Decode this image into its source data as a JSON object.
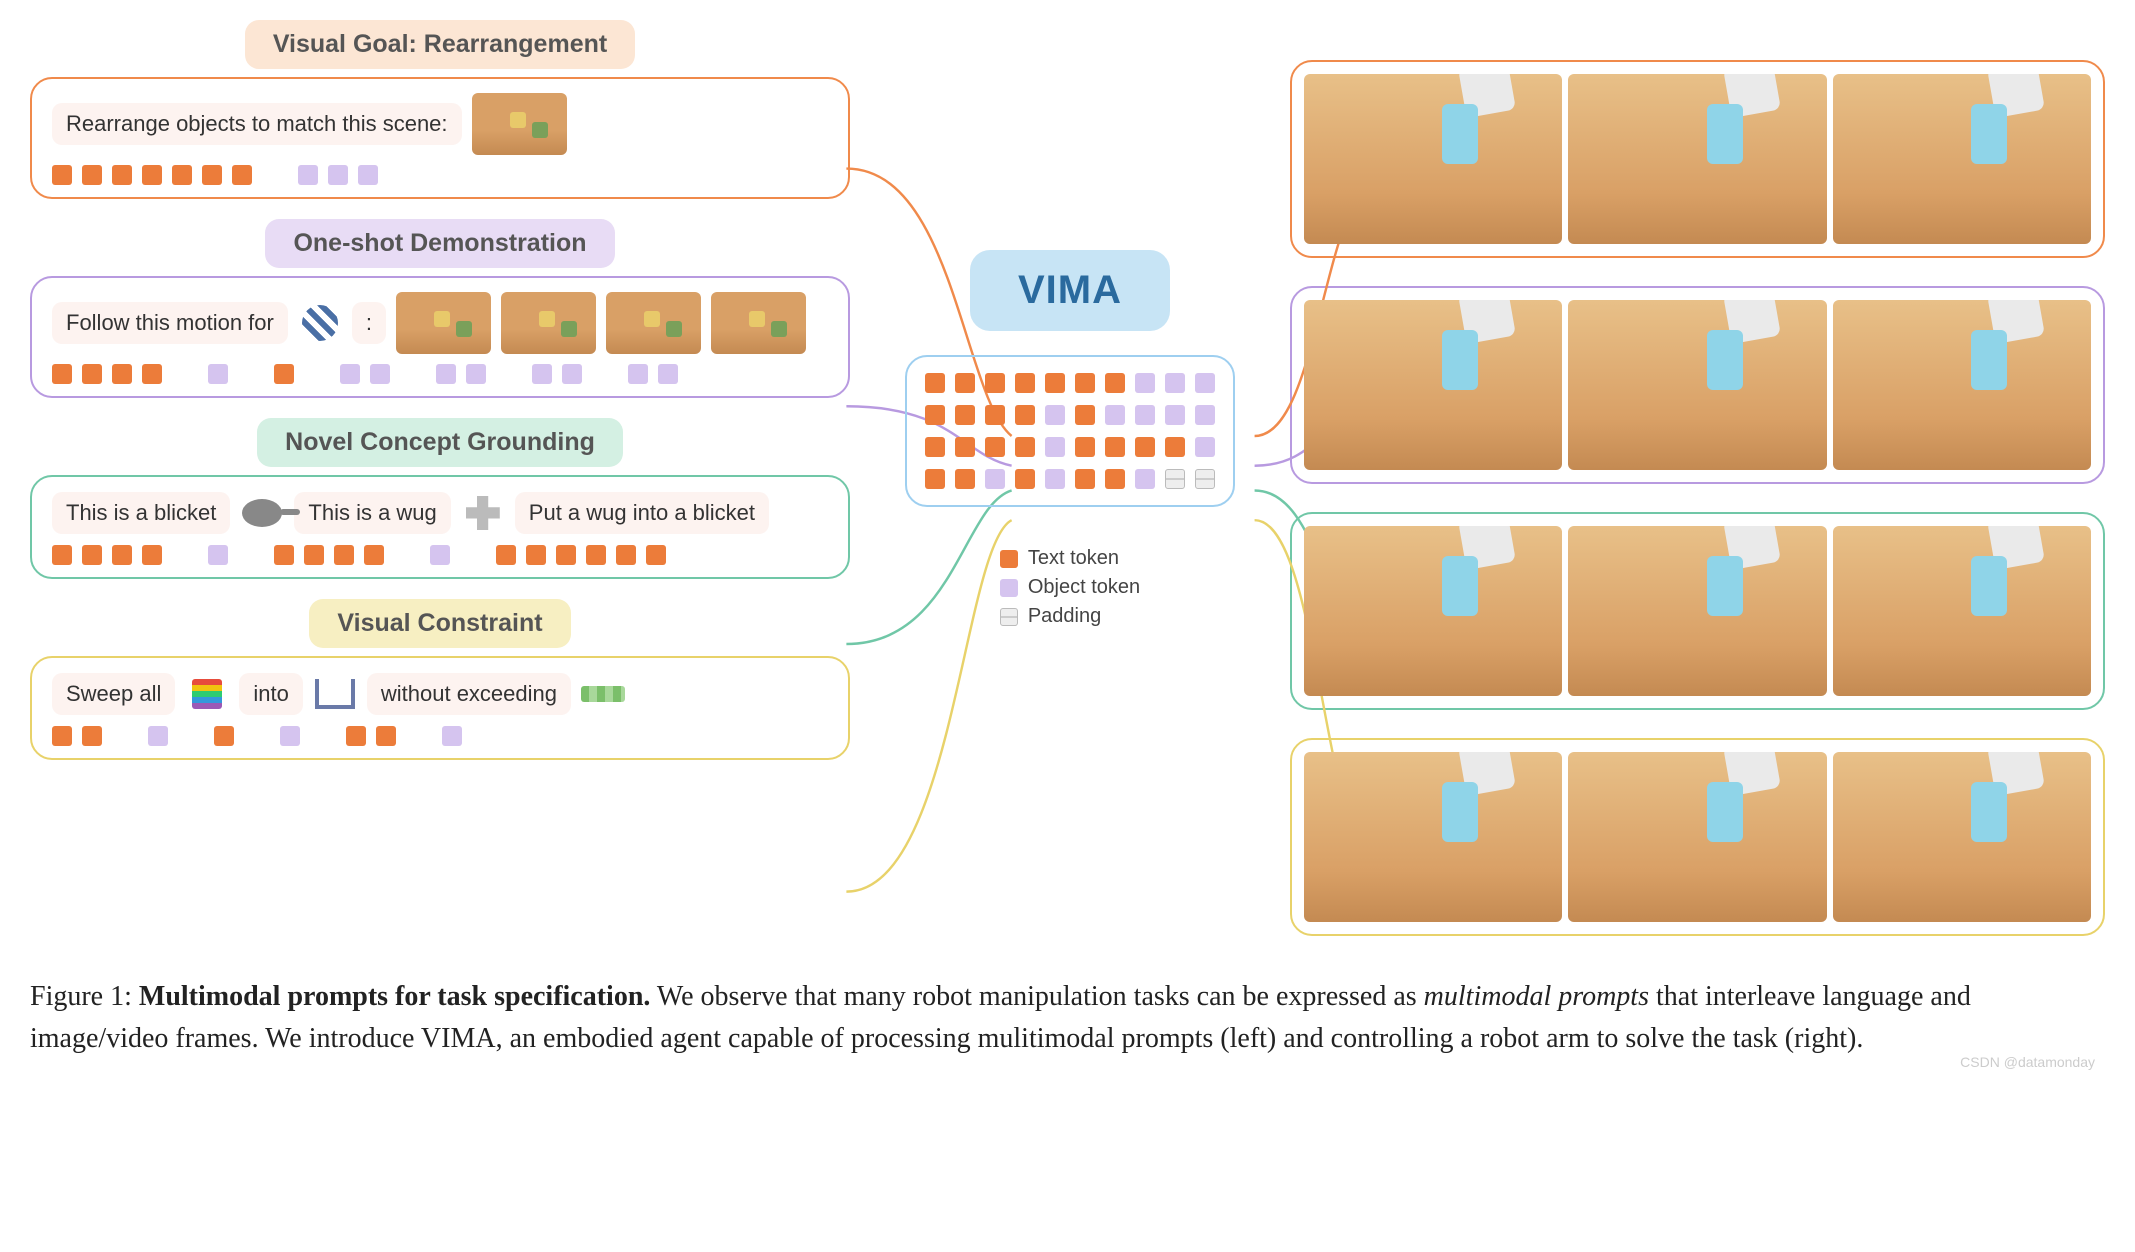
{
  "colors": {
    "orange": "#f08a4b",
    "orange_fill": "#fce6d4",
    "purple": "#b89ae0",
    "purple_fill": "#e8dcf5",
    "green": "#70c7a7",
    "green_fill": "#d4f0e3",
    "yellow": "#e8d26a",
    "yellow_fill": "#f7efc2",
    "blue": "#9ecff0",
    "text_token": "#ec7c3a",
    "object_token": "#d5c4ef",
    "padding_token": "#d9d9cf",
    "chip_bg": "#fdf3f0",
    "vima_bg": "#c7e4f5",
    "vima_text": "#2a6a9e",
    "wood": "#d9a066"
  },
  "model_name": "VIMA",
  "sections": [
    {
      "key": "rearrangement",
      "title": "Visual Goal: Rearrangement",
      "color_key": "orange",
      "prompt_parts": [
        {
          "type": "text",
          "value": "Rearrange objects to match this scene:"
        },
        {
          "type": "scene"
        }
      ],
      "tokens": [
        "t",
        "t",
        "t",
        "t",
        "t",
        "t",
        "t",
        "sp",
        "o",
        "o",
        "o"
      ]
    },
    {
      "key": "oneshot",
      "title": "One-shot Demonstration",
      "color_key": "purple",
      "prompt_parts": [
        {
          "type": "text",
          "value": "Follow this motion for"
        },
        {
          "type": "icon",
          "icon": "ball"
        },
        {
          "type": "text",
          "value": ":"
        },
        {
          "type": "scene"
        },
        {
          "type": "scene"
        },
        {
          "type": "scene"
        },
        {
          "type": "scene"
        }
      ],
      "tokens": [
        "t",
        "t",
        "t",
        "t",
        "sp",
        "o",
        "sp",
        "t",
        "sp",
        "o",
        "o",
        "sp",
        "o",
        "o",
        "sp",
        "o",
        "o",
        "sp",
        "o",
        "o"
      ]
    },
    {
      "key": "novel",
      "title": "Novel Concept Grounding",
      "color_key": "green",
      "prompt_parts": [
        {
          "type": "text",
          "value": "This is a blicket"
        },
        {
          "type": "icon",
          "icon": "pan"
        },
        {
          "type": "text",
          "value": "This is a wug"
        },
        {
          "type": "icon",
          "icon": "cross"
        },
        {
          "type": "text",
          "value": "Put a wug into a blicket"
        }
      ],
      "tokens": [
        "t",
        "t",
        "t",
        "t",
        "sp",
        "o",
        "sp",
        "t",
        "t",
        "t",
        "t",
        "sp",
        "o",
        "sp",
        "t",
        "t",
        "t",
        "t",
        "t",
        "t"
      ]
    },
    {
      "key": "constraint",
      "title": "Visual Constraint",
      "color_key": "yellow",
      "prompt_parts": [
        {
          "type": "text",
          "value": "Sweep all"
        },
        {
          "type": "icon",
          "icon": "rainbow"
        },
        {
          "type": "text",
          "value": "into"
        },
        {
          "type": "icon",
          "icon": "bracket"
        },
        {
          "type": "text",
          "value": "without exceeding"
        },
        {
          "type": "icon",
          "icon": "green-strip"
        }
      ],
      "tokens": [
        "t",
        "t",
        "sp",
        "o",
        "sp",
        "t",
        "sp",
        "o",
        "sp",
        "t",
        "t",
        "sp",
        "o"
      ]
    }
  ],
  "token_grid_rows": [
    [
      "t",
      "t",
      "t",
      "t",
      "t",
      "t",
      "t",
      "o",
      "o",
      "o"
    ],
    [
      "t",
      "t",
      "t",
      "t",
      "o",
      "t",
      "o",
      "o",
      "o",
      "o"
    ],
    [
      "t",
      "t",
      "t",
      "t",
      "o",
      "t",
      "t",
      "t",
      "t",
      "o"
    ],
    [
      "t",
      "t",
      "o",
      "t",
      "o",
      "t",
      "t",
      "o",
      "p",
      "p"
    ]
  ],
  "legend": [
    {
      "label": "Text token",
      "color_key": "text_token"
    },
    {
      "label": "Object token",
      "color_key": "object_token"
    },
    {
      "label": "Padding",
      "color_key": "padding_token"
    }
  ],
  "outputs": [
    {
      "color_key": "orange",
      "frames": 3
    },
    {
      "color_key": "purple",
      "frames": 3
    },
    {
      "color_key": "green",
      "frames": 3
    },
    {
      "color_key": "yellow",
      "frames": 3
    }
  ],
  "caption": {
    "fig_label": "Figure 1:",
    "bold": "Multimodal prompts for task specification.",
    "rest1": " We observe that many robot manipulation tasks can be expressed as ",
    "ital": "multimodal prompts",
    "rest2": " that interleave language and image/video frames. We introduce VIMA, an embodied agent capable of processing mulitimodal prompts (left) and controlling a robot arm to solve the task (right)."
  },
  "watermark": "CSDN @datamonday"
}
